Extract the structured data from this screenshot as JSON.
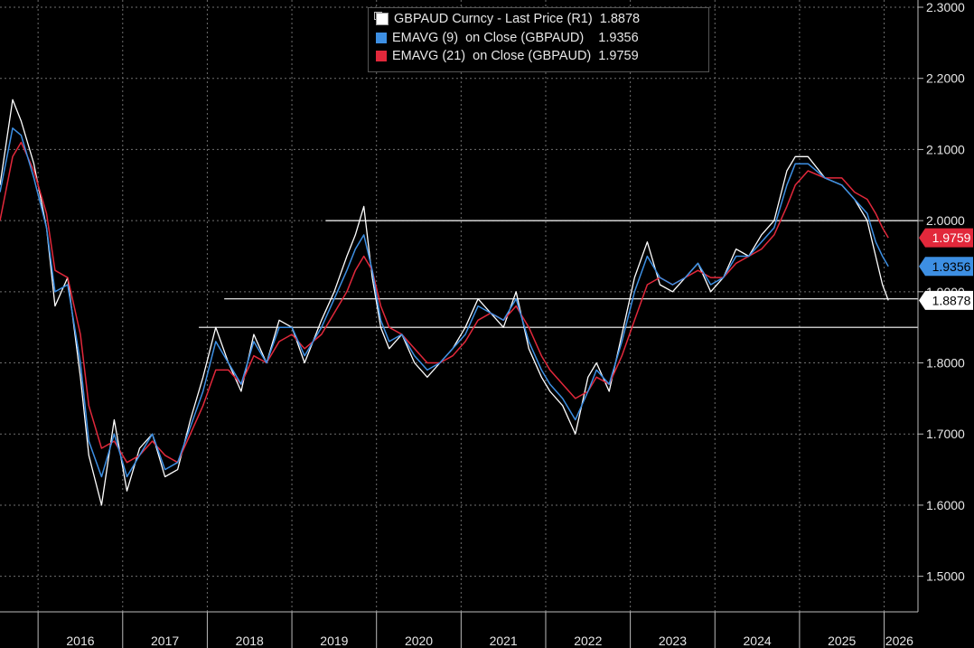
{
  "chart_data": {
    "type": "line",
    "ticker": "GBPAUD",
    "x_unit": "year",
    "xlim": [
      2015.55,
      2026.4
    ],
    "ylim": [
      1.45,
      2.3
    ],
    "y_ticks": [
      1.5,
      1.6,
      1.7,
      1.8,
      1.9,
      2.0,
      2.1,
      2.2,
      2.3
    ],
    "y_tick_labels": [
      "1.5000",
      "1.6000",
      "1.7000",
      "1.8000",
      "1.9000",
      "2.0000",
      "2.1000",
      "2.2000",
      "2.3000"
    ],
    "x_ticks": [
      2016,
      2017,
      2018,
      2019,
      2020,
      2021,
      2022,
      2023,
      2024,
      2025,
      2026
    ],
    "x_tick_labels": [
      "2016",
      "2017",
      "2018",
      "2019",
      "2020",
      "2021",
      "2022",
      "2023",
      "2024",
      "2025",
      "2026"
    ],
    "grid": true,
    "legend_position": "top-center",
    "series": [
      {
        "name": "GBPAUD Curncy - Last Price (R1)",
        "color": "#ffffff",
        "last_value_label": "1.8878",
        "x": [
          2015.55,
          2015.7,
          2015.8,
          2015.95,
          2016.1,
          2016.2,
          2016.35,
          2016.5,
          2016.6,
          2016.75,
          2016.9,
          2017.05,
          2017.2,
          2017.35,
          2017.5,
          2017.65,
          2017.8,
          2017.95,
          2018.1,
          2018.25,
          2018.4,
          2018.55,
          2018.7,
          2018.85,
          2019.0,
          2019.15,
          2019.35,
          2019.5,
          2019.65,
          2019.75,
          2019.85,
          2019.95,
          2020.05,
          2020.15,
          2020.3,
          2020.45,
          2020.6,
          2020.75,
          2020.9,
          2021.05,
          2021.2,
          2021.35,
          2021.5,
          2021.65,
          2021.8,
          2021.95,
          2022.05,
          2022.2,
          2022.35,
          2022.5,
          2022.6,
          2022.75,
          2022.9,
          2023.05,
          2023.2,
          2023.35,
          2023.5,
          2023.65,
          2023.8,
          2023.95,
          2024.1,
          2024.25,
          2024.4,
          2024.55,
          2024.7,
          2024.85,
          2024.95,
          2025.1,
          2025.3,
          2025.5,
          2025.65,
          2025.8,
          2025.9,
          2025.98,
          2026.05
        ],
        "values": [
          2.05,
          2.17,
          2.14,
          2.08,
          1.99,
          1.88,
          1.92,
          1.78,
          1.67,
          1.6,
          1.72,
          1.62,
          1.68,
          1.7,
          1.64,
          1.65,
          1.72,
          1.78,
          1.85,
          1.8,
          1.76,
          1.84,
          1.8,
          1.86,
          1.85,
          1.8,
          1.86,
          1.9,
          1.95,
          1.98,
          2.02,
          1.92,
          1.85,
          1.82,
          1.84,
          1.8,
          1.78,
          1.8,
          1.82,
          1.85,
          1.89,
          1.87,
          1.85,
          1.9,
          1.82,
          1.78,
          1.76,
          1.74,
          1.7,
          1.78,
          1.8,
          1.76,
          1.84,
          1.92,
          1.97,
          1.91,
          1.9,
          1.92,
          1.94,
          1.9,
          1.92,
          1.96,
          1.95,
          1.98,
          2.0,
          2.07,
          2.09,
          2.09,
          2.06,
          2.05,
          2.03,
          2.0,
          1.95,
          1.91,
          1.8878
        ]
      },
      {
        "name": "EMAVG (9)  on Close (GBPAUD)",
        "color": "#3d8fe3",
        "last_value_label": "1.9356",
        "x": [
          2015.55,
          2015.7,
          2015.8,
          2015.95,
          2016.1,
          2016.2,
          2016.35,
          2016.5,
          2016.6,
          2016.75,
          2016.9,
          2017.05,
          2017.2,
          2017.35,
          2017.5,
          2017.65,
          2017.8,
          2017.95,
          2018.1,
          2018.25,
          2018.4,
          2018.55,
          2018.7,
          2018.85,
          2019.0,
          2019.15,
          2019.35,
          2019.5,
          2019.65,
          2019.75,
          2019.85,
          2019.95,
          2020.05,
          2020.15,
          2020.3,
          2020.45,
          2020.6,
          2020.75,
          2020.9,
          2021.05,
          2021.2,
          2021.35,
          2021.5,
          2021.65,
          2021.8,
          2021.95,
          2022.05,
          2022.2,
          2022.35,
          2022.5,
          2022.6,
          2022.75,
          2022.9,
          2023.05,
          2023.2,
          2023.35,
          2023.5,
          2023.65,
          2023.8,
          2023.95,
          2024.1,
          2024.25,
          2024.4,
          2024.55,
          2024.7,
          2024.85,
          2024.95,
          2025.1,
          2025.3,
          2025.5,
          2025.65,
          2025.8,
          2025.9,
          2025.98,
          2026.05
        ],
        "values": [
          2.04,
          2.13,
          2.12,
          2.06,
          1.99,
          1.9,
          1.91,
          1.8,
          1.69,
          1.64,
          1.7,
          1.64,
          1.67,
          1.7,
          1.65,
          1.66,
          1.71,
          1.76,
          1.83,
          1.8,
          1.77,
          1.83,
          1.8,
          1.85,
          1.85,
          1.81,
          1.85,
          1.89,
          1.93,
          1.96,
          1.98,
          1.93,
          1.86,
          1.83,
          1.84,
          1.81,
          1.79,
          1.8,
          1.82,
          1.84,
          1.88,
          1.87,
          1.86,
          1.89,
          1.83,
          1.79,
          1.77,
          1.75,
          1.72,
          1.76,
          1.79,
          1.77,
          1.83,
          1.9,
          1.95,
          1.92,
          1.91,
          1.92,
          1.94,
          1.91,
          1.92,
          1.95,
          1.95,
          1.97,
          1.99,
          2.05,
          2.08,
          2.08,
          2.06,
          2.05,
          2.03,
          2.01,
          1.97,
          1.95,
          1.9356
        ]
      },
      {
        "name": "EMAVG (21)  on Close (GBPAUD)",
        "color": "#e2283b",
        "last_value_label": "1.9759",
        "x": [
          2015.55,
          2015.7,
          2015.8,
          2015.95,
          2016.1,
          2016.2,
          2016.35,
          2016.5,
          2016.6,
          2016.75,
          2016.9,
          2017.05,
          2017.2,
          2017.35,
          2017.5,
          2017.65,
          2017.8,
          2017.95,
          2018.1,
          2018.25,
          2018.4,
          2018.55,
          2018.7,
          2018.85,
          2019.0,
          2019.15,
          2019.35,
          2019.5,
          2019.65,
          2019.75,
          2019.85,
          2019.95,
          2020.05,
          2020.15,
          2020.3,
          2020.45,
          2020.6,
          2020.75,
          2020.9,
          2021.05,
          2021.2,
          2021.35,
          2021.5,
          2021.65,
          2021.8,
          2021.95,
          2022.05,
          2022.2,
          2022.35,
          2022.5,
          2022.6,
          2022.75,
          2022.9,
          2023.05,
          2023.2,
          2023.35,
          2023.5,
          2023.65,
          2023.8,
          2023.95,
          2024.1,
          2024.25,
          2024.4,
          2024.55,
          2024.7,
          2024.85,
          2024.95,
          2025.1,
          2025.3,
          2025.5,
          2025.65,
          2025.8,
          2025.9,
          2025.98,
          2026.05
        ],
        "values": [
          2.0,
          2.09,
          2.11,
          2.07,
          2.01,
          1.93,
          1.92,
          1.84,
          1.74,
          1.68,
          1.69,
          1.66,
          1.67,
          1.69,
          1.67,
          1.66,
          1.7,
          1.74,
          1.79,
          1.79,
          1.77,
          1.81,
          1.8,
          1.83,
          1.84,
          1.82,
          1.84,
          1.87,
          1.9,
          1.93,
          1.95,
          1.93,
          1.88,
          1.85,
          1.84,
          1.82,
          1.8,
          1.8,
          1.81,
          1.83,
          1.86,
          1.87,
          1.86,
          1.88,
          1.85,
          1.81,
          1.79,
          1.77,
          1.75,
          1.76,
          1.78,
          1.77,
          1.81,
          1.86,
          1.91,
          1.92,
          1.91,
          1.92,
          1.93,
          1.92,
          1.92,
          1.94,
          1.95,
          1.96,
          1.98,
          2.02,
          2.05,
          2.07,
          2.06,
          2.06,
          2.04,
          2.03,
          2.01,
          1.99,
          1.9759
        ]
      }
    ],
    "horizontal_lines": [
      2.0,
      1.89,
      1.85
    ],
    "badge_colors": {
      "price_bg": "#ffffff",
      "price_fg": "#000000",
      "ema9_bg": "#3d8fe3",
      "ema9_fg": "#000000",
      "ema21_bg": "#e2283b",
      "ema21_fg": "#ffffff"
    },
    "legend": {
      "line1": "GBPAUD Curncy - Last Price (R1)  1.8878",
      "line2": "EMAVG (9)  on Close (GBPAUD)    1.9356",
      "line3": "EMAVG (21)  on Close (GBPAUD)  1.9759"
    }
  }
}
